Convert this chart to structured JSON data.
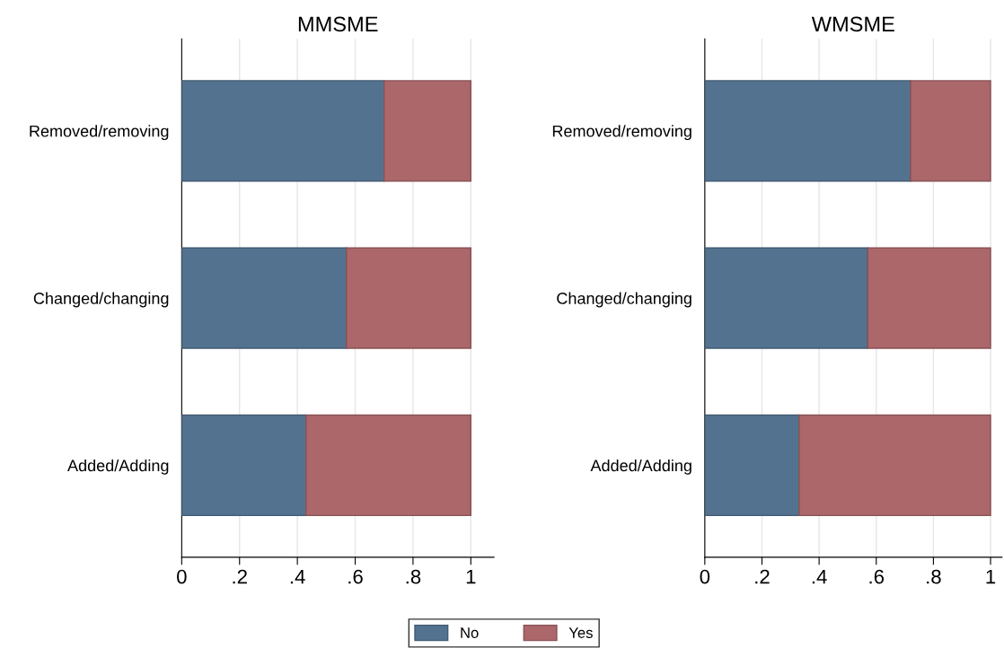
{
  "chart_data": [
    {
      "type": "bar",
      "orientation": "horizontal",
      "stacked": true,
      "title": "MMSME",
      "categories": [
        "Removed/removing",
        "Changed/changing",
        "Added/Adding"
      ],
      "series": [
        {
          "name": "No",
          "color": "#53728f",
          "values": [
            0.7,
            0.57,
            0.43
          ]
        },
        {
          "name": "Yes",
          "color": "#ab676a",
          "values": [
            0.3,
            0.43,
            0.57
          ]
        }
      ],
      "xlim": [
        0,
        1.08
      ],
      "xticks": [
        0,
        {
          "value": 0.2,
          "label": ".2"
        },
        {
          "value": 0.4,
          "label": ".4"
        },
        {
          "value": 0.6,
          "label": ".6"
        },
        {
          "value": 0.8,
          "label": ".8"
        },
        1
      ],
      "grid": "x",
      "legend": "bottom"
    },
    {
      "type": "bar",
      "orientation": "horizontal",
      "stacked": true,
      "title": "WMSME",
      "categories": [
        "Removed/removing",
        "Changed/changing",
        "Added/Adding"
      ],
      "series": [
        {
          "color": "#53728f",
          "values": [
            0.72,
            0.57,
            0.33
          ]
        },
        {
          "color": "#ab676a",
          "values": [
            0.28,
            0.43,
            0.67
          ]
        }
      ],
      "xlim": [
        0,
        1.04
      ],
      "xticks": [
        0,
        {
          "value": 0.2,
          "label": ".2"
        },
        {
          "value": 0.4,
          "label": ".4"
        },
        {
          "value": 0.6,
          "label": ".6"
        },
        {
          "value": 0.8,
          "label": ".8"
        },
        1
      ],
      "grid": "x"
    }
  ]
}
